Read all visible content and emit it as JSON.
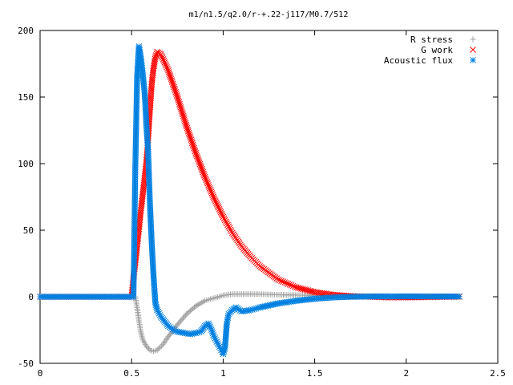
{
  "chart_data": {
    "type": "scatter",
    "title": "m1/n1.5/q2.0/r-+.22-j117/M0.7/512",
    "xlabel": "",
    "ylabel": "",
    "xlim": [
      0,
      2.5
    ],
    "ylim": [
      -50,
      200
    ],
    "xticks": [
      "0",
      "0.5",
      "1",
      "1.5",
      "2",
      "2.5"
    ],
    "yticks": [
      "-50",
      "0",
      "50",
      "100",
      "150",
      "200"
    ],
    "grid": false,
    "legend_position": "top-right",
    "series": [
      {
        "name": "R stress",
        "marker": "plus",
        "color": "#a0a0a0",
        "points": [
          [
            0.0,
            0
          ],
          [
            0.1,
            0
          ],
          [
            0.2,
            0
          ],
          [
            0.3,
            0
          ],
          [
            0.4,
            0
          ],
          [
            0.5,
            0
          ],
          [
            0.52,
            0
          ],
          [
            0.53,
            -8
          ],
          [
            0.54,
            -18
          ],
          [
            0.55,
            -26
          ],
          [
            0.56,
            -32
          ],
          [
            0.58,
            -37
          ],
          [
            0.6,
            -40
          ],
          [
            0.62,
            -41
          ],
          [
            0.64,
            -40
          ],
          [
            0.67,
            -36
          ],
          [
            0.7,
            -30
          ],
          [
            0.75,
            -21
          ],
          [
            0.8,
            -13
          ],
          [
            0.85,
            -7
          ],
          [
            0.9,
            -3
          ],
          [
            0.95,
            -1
          ],
          [
            1.0,
            1
          ],
          [
            1.05,
            2
          ],
          [
            1.1,
            2
          ],
          [
            1.2,
            2
          ],
          [
            1.3,
            1.5
          ],
          [
            1.5,
            1
          ],
          [
            1.8,
            0.5
          ],
          [
            2.0,
            0.3
          ],
          [
            2.29,
            0.2
          ]
        ]
      },
      {
        "name": "G work",
        "marker": "cross",
        "color": "#ff0000",
        "points": [
          [
            0.0,
            0
          ],
          [
            0.1,
            0
          ],
          [
            0.2,
            0
          ],
          [
            0.3,
            0
          ],
          [
            0.4,
            0
          ],
          [
            0.5,
            0
          ],
          [
            0.51,
            14
          ],
          [
            0.52,
            25
          ],
          [
            0.53,
            38
          ],
          [
            0.54,
            51
          ],
          [
            0.55,
            64
          ],
          [
            0.56,
            76
          ],
          [
            0.57,
            88
          ],
          [
            0.58,
            100
          ],
          [
            0.59,
            118
          ],
          [
            0.6,
            140
          ],
          [
            0.61,
            160
          ],
          [
            0.62,
            172
          ],
          [
            0.63,
            180
          ],
          [
            0.64,
            184
          ],
          [
            0.66,
            182
          ],
          [
            0.7,
            170
          ],
          [
            0.75,
            150
          ],
          [
            0.8,
            128
          ],
          [
            0.85,
            108
          ],
          [
            0.9,
            90
          ],
          [
            0.95,
            74
          ],
          [
            1.0,
            60
          ],
          [
            1.05,
            48
          ],
          [
            1.1,
            38
          ],
          [
            1.15,
            30
          ],
          [
            1.2,
            23
          ],
          [
            1.3,
            13
          ],
          [
            1.4,
            7
          ],
          [
            1.5,
            3.5
          ],
          [
            1.6,
            1.5
          ],
          [
            1.7,
            0.5
          ],
          [
            1.8,
            0
          ],
          [
            1.9,
            -0.5
          ],
          [
            2.0,
            -0.5
          ],
          [
            2.1,
            -0.3
          ],
          [
            2.29,
            0
          ]
        ]
      },
      {
        "name": "Acoustic flux",
        "marker": "star",
        "color": "#0080e0",
        "points": [
          [
            0.0,
            0
          ],
          [
            0.1,
            0
          ],
          [
            0.2,
            0
          ],
          [
            0.3,
            0
          ],
          [
            0.4,
            0
          ],
          [
            0.5,
            0
          ],
          [
            0.51,
            0
          ],
          [
            0.52,
            96
          ],
          [
            0.53,
            165
          ],
          [
            0.54,
            188
          ],
          [
            0.55,
            180
          ],
          [
            0.56,
            168
          ],
          [
            0.57,
            155
          ],
          [
            0.575,
            145
          ],
          [
            0.58,
            130
          ],
          [
            0.59,
            110
          ],
          [
            0.6,
            70
          ],
          [
            0.61,
            40
          ],
          [
            0.62,
            15
          ],
          [
            0.63,
            -5
          ],
          [
            0.64,
            -10
          ],
          [
            0.66,
            -15
          ],
          [
            0.7,
            -22
          ],
          [
            0.74,
            -26
          ],
          [
            0.78,
            -27
          ],
          [
            0.82,
            -28
          ],
          [
            0.86,
            -27
          ],
          [
            0.88,
            -26
          ],
          [
            0.9,
            -22
          ],
          [
            0.92,
            -20
          ],
          [
            0.94,
            -26
          ],
          [
            0.95,
            -30
          ],
          [
            0.97,
            -35
          ],
          [
            0.99,
            -40
          ],
          [
            1.0,
            -43
          ],
          [
            1.01,
            -38
          ],
          [
            1.02,
            -20
          ],
          [
            1.03,
            -13
          ],
          [
            1.05,
            -10
          ],
          [
            1.07,
            -8
          ],
          [
            1.1,
            -11
          ],
          [
            1.15,
            -10
          ],
          [
            1.2,
            -8
          ],
          [
            1.3,
            -5
          ],
          [
            1.4,
            -3
          ],
          [
            1.5,
            -1.5
          ],
          [
            1.6,
            -0.5
          ],
          [
            1.7,
            0
          ],
          [
            1.8,
            0.2
          ],
          [
            2.0,
            0.3
          ],
          [
            2.29,
            0.2
          ]
        ]
      }
    ]
  }
}
